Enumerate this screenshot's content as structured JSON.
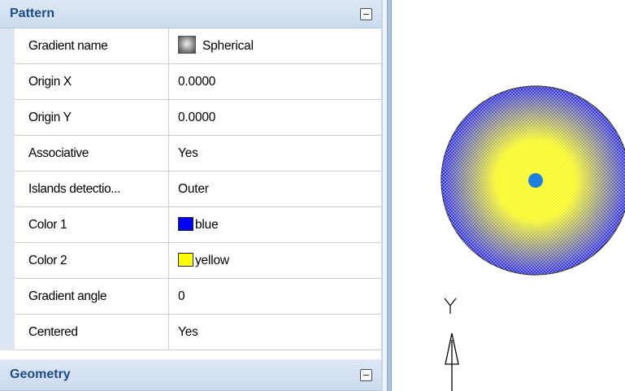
{
  "pattern_section": {
    "title": "Pattern",
    "rows": [
      {
        "name": "Gradient name",
        "value": "Spherical",
        "icon": "gradient-spherical-icon"
      },
      {
        "name": "Origin X",
        "value": "0.0000"
      },
      {
        "name": "Origin Y",
        "value": "0.0000"
      },
      {
        "name": "Associative",
        "value": "Yes"
      },
      {
        "name": "Islands detectio...",
        "value": "Outer"
      },
      {
        "name": "Color 1",
        "value": "blue",
        "swatch": "#0000ff"
      },
      {
        "name": "Color 2",
        "value": "yellow",
        "swatch": "#ffff00"
      },
      {
        "name": "Gradient angle",
        "value": "0"
      },
      {
        "name": "Centered",
        "value": "Yes"
      }
    ]
  },
  "geometry_section": {
    "title": "Geometry"
  },
  "drawing": {
    "axis_label": "Y",
    "hatch_outer_color": "#2020e0",
    "hatch_inner_color": "#ffff00",
    "center_marker_color": "#1e7fdc"
  }
}
